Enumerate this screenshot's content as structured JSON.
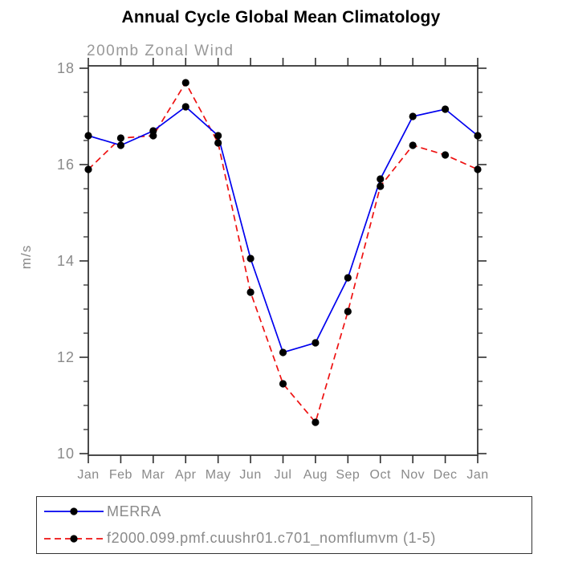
{
  "title": "Annual Cycle Global Mean Climatology",
  "subtitle": "200mb Zonal Wind",
  "y_axis_label": "m/s",
  "chart_data": {
    "type": "line",
    "categories": [
      "Jan",
      "Feb",
      "Mar",
      "Apr",
      "May",
      "Jun",
      "Jul",
      "Aug",
      "Sep",
      "Oct",
      "Nov",
      "Dec",
      "Jan"
    ],
    "series": [
      {
        "name": "MERRA",
        "color": "#0000ee",
        "line_style": "solid",
        "marker": "black-dot",
        "values": [
          16.6,
          16.4,
          16.7,
          17.2,
          16.6,
          14.05,
          12.1,
          12.3,
          13.65,
          15.7,
          17.0,
          17.15,
          16.6
        ]
      },
      {
        "name": "f2000.099.pmf.cuushr01.c701_nomflumvm (1-5)",
        "color": "#ee1111",
        "line_style": "dashed",
        "marker": "black-dot",
        "values": [
          15.9,
          16.55,
          16.6,
          17.7,
          16.45,
          13.35,
          11.45,
          10.65,
          12.95,
          15.55,
          16.4,
          16.2,
          15.9
        ]
      }
    ],
    "xlabel": "",
    "ylabel": "m/s",
    "ylim": [
      10,
      18
    ],
    "yticks": [
      10,
      12,
      14,
      16,
      18
    ],
    "y_minor_tick_interval": 0.5,
    "grid": false,
    "legend_position": "bottom",
    "marker_color": "#000000",
    "axis_color": "#4a4a4a",
    "tick_label_color": "#8a8a8a"
  }
}
